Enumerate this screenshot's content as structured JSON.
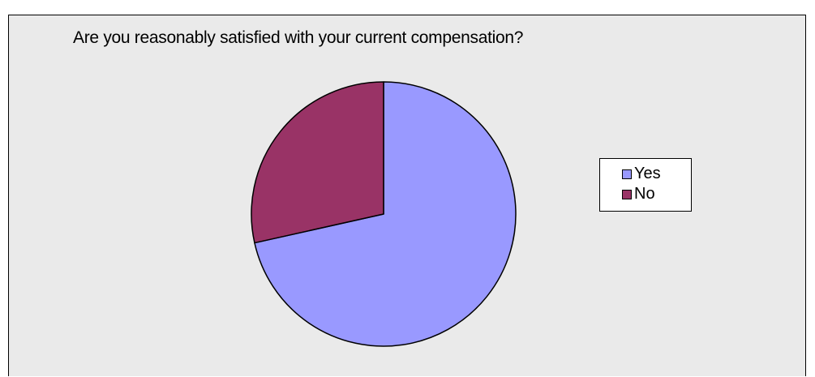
{
  "chart_data": {
    "type": "pie",
    "title": "Are you reasonably satisfied with your current compensation?",
    "categories": [
      "Yes",
      "No"
    ],
    "values": [
      71.5,
      28.5
    ],
    "colors": [
      "#9999ff",
      "#993366"
    ],
    "start_angle_deg": 0,
    "direction": "clockwise",
    "legend_position": "right"
  }
}
